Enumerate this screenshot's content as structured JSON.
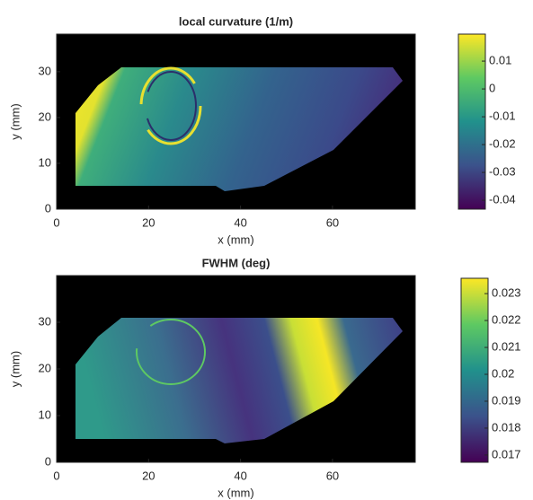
{
  "chart_data": [
    {
      "type": "heatmap",
      "title": "local curvature  (1/m)",
      "xlabel": "x (mm)",
      "ylabel": "y (mm)",
      "xlim": [
        0,
        78
      ],
      "ylim": [
        0,
        38.2
      ],
      "xticks": [
        0,
        20,
        40,
        60
      ],
      "yticks": [
        0,
        10,
        20,
        30
      ],
      "clim": [
        -0.0432,
        0.0197
      ],
      "cticks": [
        0.01,
        0,
        -0.01,
        -0.02,
        -0.03,
        -0.04
      ]
    },
    {
      "type": "heatmap",
      "title": "FWHM (deg)",
      "xlabel": "x (mm)",
      "ylabel": "y (mm)",
      "xlim": [
        0,
        78
      ],
      "ylim": [
        0,
        40
      ],
      "xticks": [
        0,
        20,
        40,
        60
      ],
      "yticks": [
        0,
        10,
        20,
        30
      ],
      "clim": [
        0.01673,
        0.02357
      ],
      "cticks": [
        0.023,
        0.022,
        0.021,
        0.02,
        0.019,
        0.018,
        0.017
      ]
    }
  ]
}
